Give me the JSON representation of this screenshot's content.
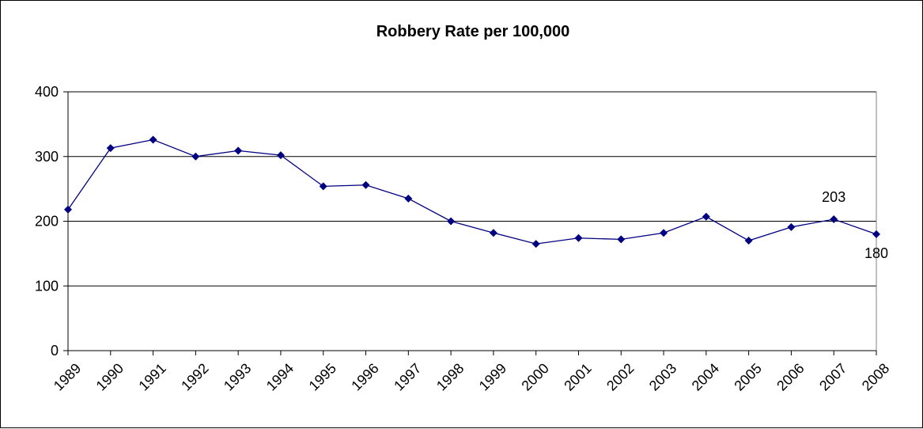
{
  "chart_data": {
    "type": "line",
    "title": "Robbery Rate per 100,000",
    "xlabel": "",
    "ylabel": "",
    "x": [
      "1989",
      "1990",
      "1991",
      "1992",
      "1993",
      "1994",
      "1995",
      "1996",
      "1997",
      "1998",
      "1999",
      "2000",
      "2001",
      "2002",
      "2003",
      "2004",
      "2005",
      "2006",
      "2007",
      "2008"
    ],
    "series": [
      {
        "values": [
          218,
          313,
          326,
          300,
          309,
          302,
          254,
          256,
          235,
          200,
          182,
          165,
          174,
          172,
          182,
          207,
          170,
          191,
          203,
          180
        ],
        "color": "#000080"
      }
    ],
    "ylim": [
      0,
      400
    ],
    "yticks": [
      "0",
      "100",
      "200",
      "300",
      "400"
    ],
    "grid": "horizontal",
    "legend": "none",
    "data_labels": [
      {
        "index": 18,
        "text": "203",
        "position": "above"
      },
      {
        "index": 19,
        "text": "180",
        "position": "below"
      }
    ]
  }
}
